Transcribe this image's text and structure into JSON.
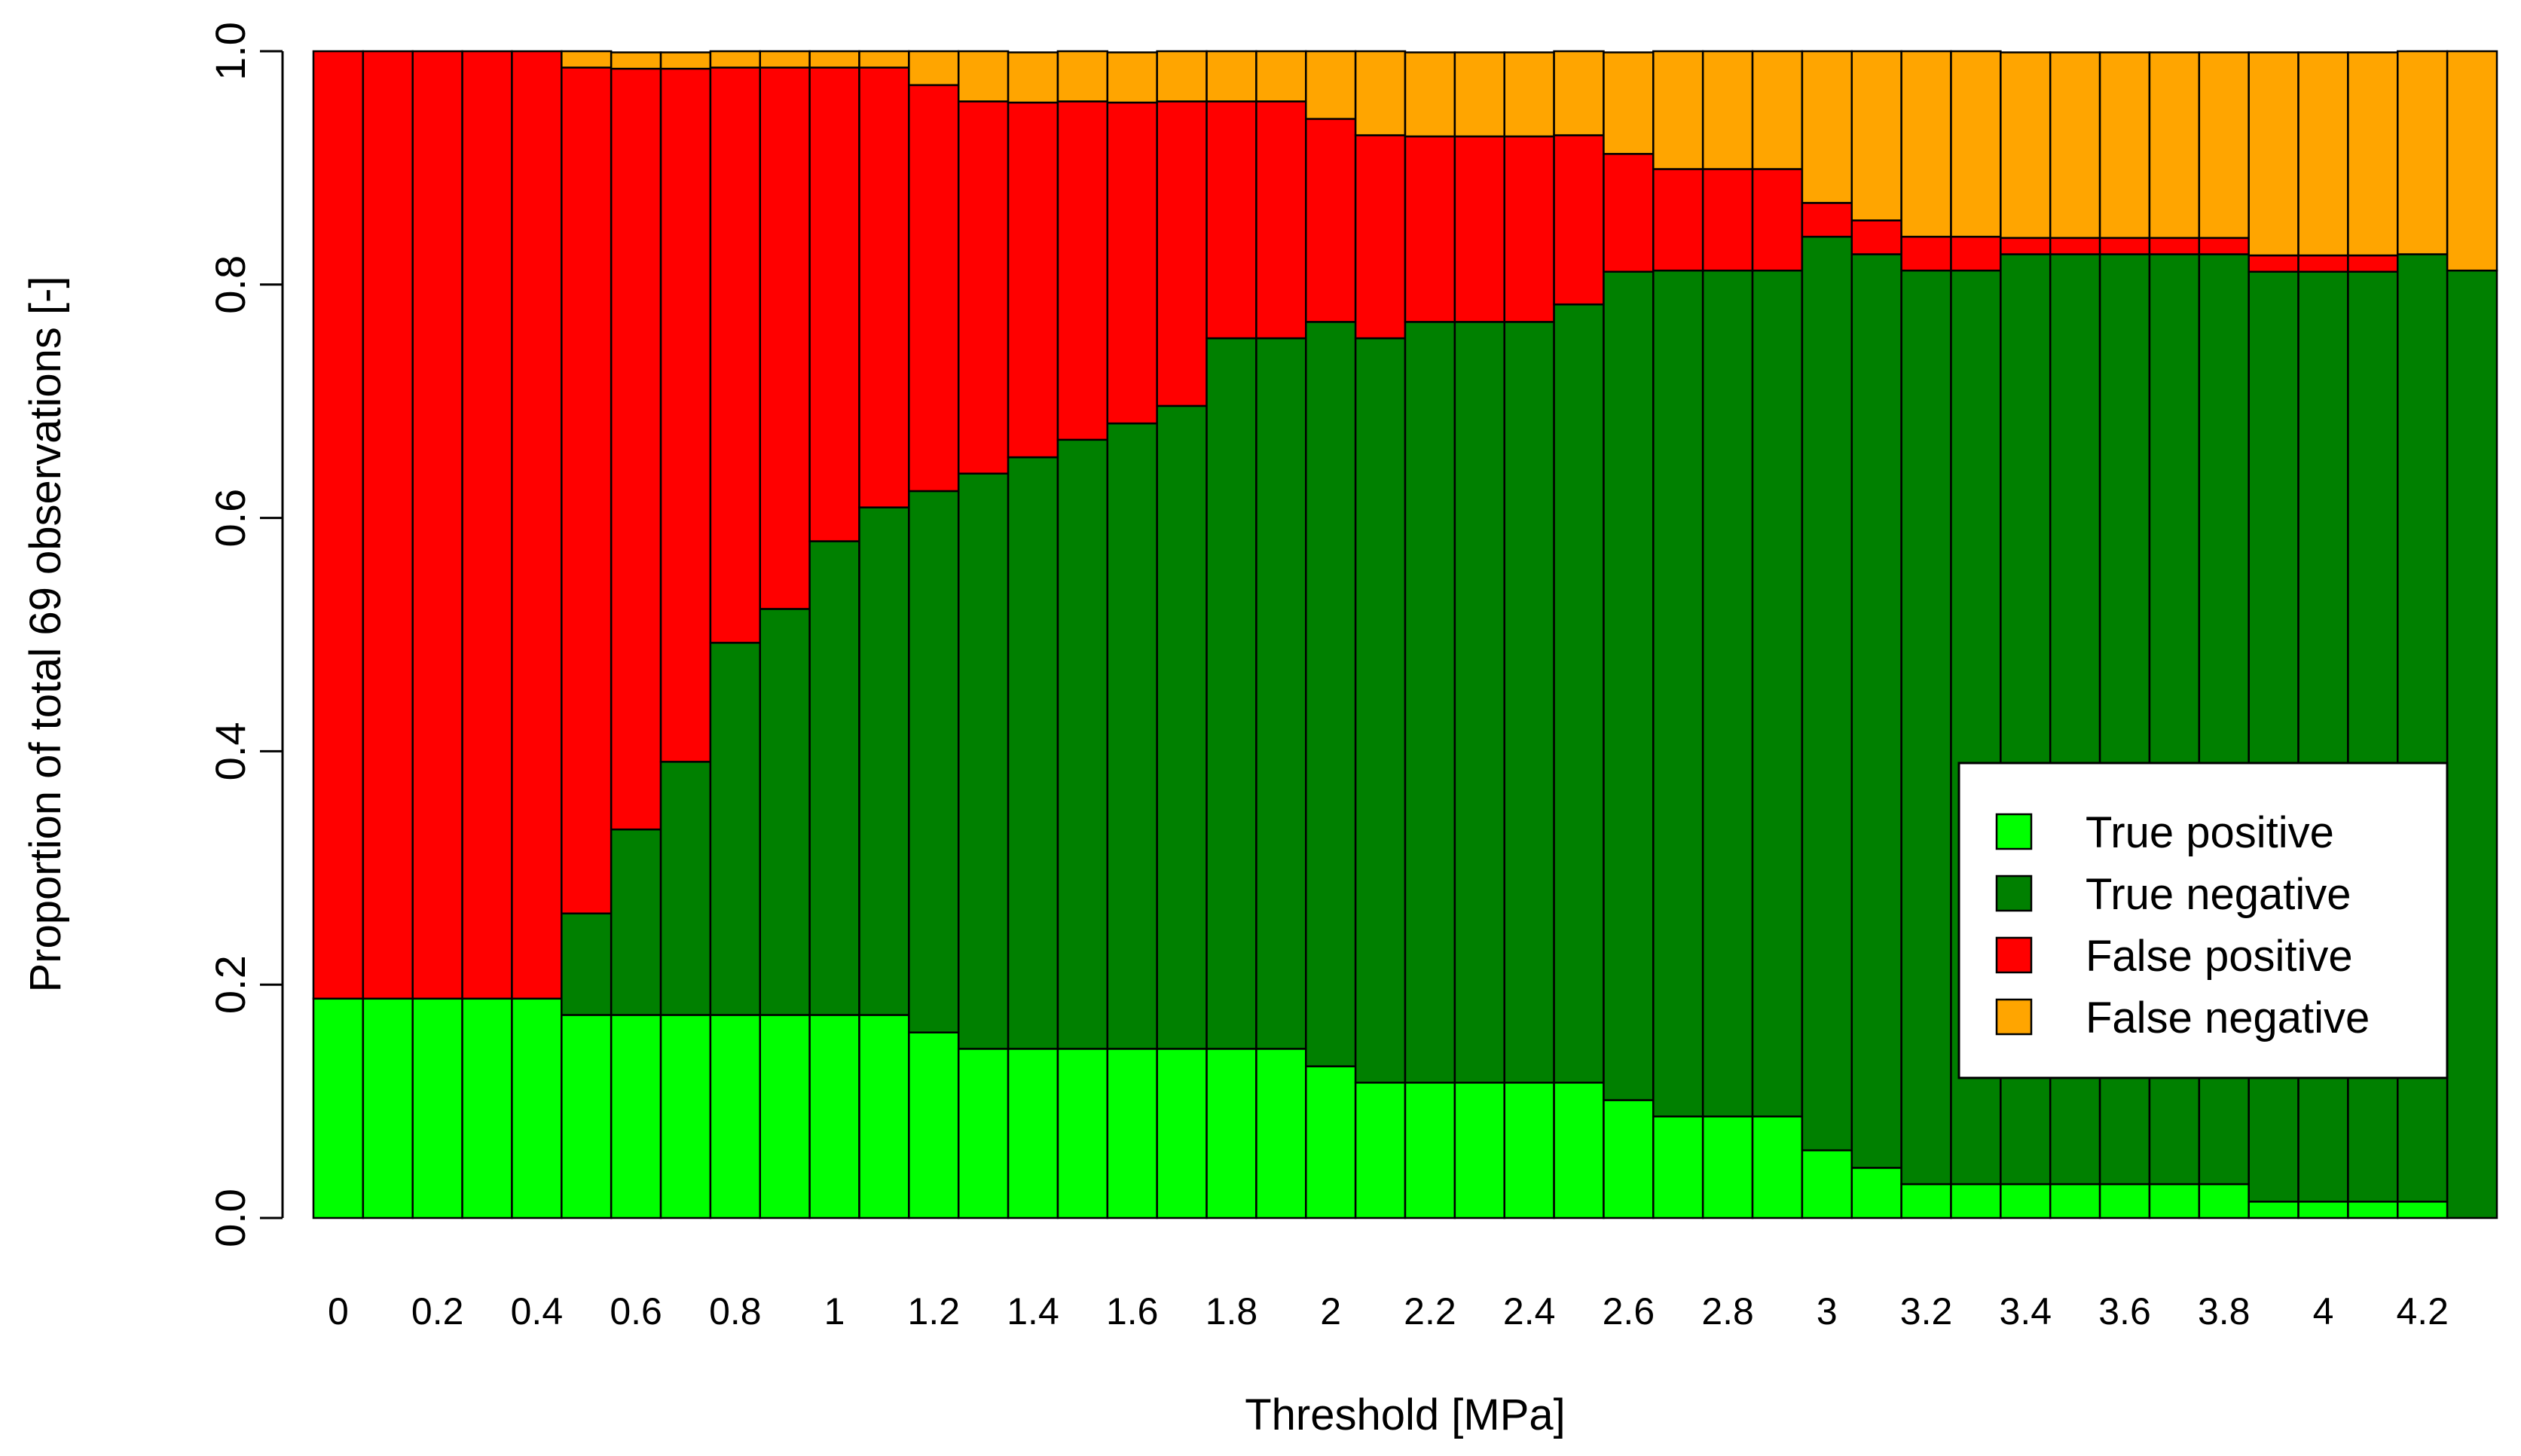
{
  "chart_data": {
    "type": "bar",
    "stacked": true,
    "xlabel": "Threshold [MPa]",
    "ylabel": "Proportion of total 69 observations [-]",
    "ylim": [
      0,
      1
    ],
    "yticks": [
      "0.0",
      "0.2",
      "0.4",
      "0.6",
      "0.8",
      "1.0"
    ],
    "yticks_values": [
      0,
      0.2,
      0.4,
      0.6,
      0.8,
      1.0
    ],
    "categories": [
      "0",
      "",
      "0.2",
      "",
      "0.4",
      "",
      "0.6",
      "",
      "0.8",
      "",
      "1",
      "",
      "1.2",
      "",
      "1.4",
      "",
      "1.6",
      "",
      "1.8",
      "",
      "2",
      "",
      "2.2",
      "",
      "2.4",
      "",
      "2.6",
      "",
      "2.8",
      "",
      "3",
      "",
      "3.2",
      "",
      "3.4",
      "",
      "3.6",
      "",
      "3.8",
      "",
      "4",
      "",
      "4.2",
      ""
    ],
    "legend_position": "right",
    "series": [
      {
        "name": "True positive",
        "color": "#00ff00",
        "values": [
          0.188,
          0.188,
          0.188,
          0.188,
          0.188,
          0.174,
          0.174,
          0.174,
          0.174,
          0.174,
          0.174,
          0.174,
          0.159,
          0.145,
          0.145,
          0.145,
          0.145,
          0.145,
          0.145,
          0.145,
          0.13,
          0.116,
          0.116,
          0.116,
          0.116,
          0.116,
          0.101,
          0.087,
          0.087,
          0.087,
          0.058,
          0.043,
          0.029,
          0.029,
          0.029,
          0.029,
          0.029,
          0.029,
          0.029,
          0.014,
          0.014,
          0.014,
          0.014,
          0.0
        ]
      },
      {
        "name": "True negative",
        "color": "#008000",
        "values": [
          0.0,
          0.0,
          0.0,
          0.0,
          0.0,
          0.087,
          0.159,
          0.217,
          0.319,
          0.348,
          0.406,
          0.435,
          0.464,
          0.493,
          0.507,
          0.522,
          0.536,
          0.551,
          0.609,
          0.609,
          0.638,
          0.638,
          0.652,
          0.652,
          0.652,
          0.667,
          0.71,
          0.725,
          0.725,
          0.725,
          0.783,
          0.783,
          0.783,
          0.783,
          0.797,
          0.797,
          0.797,
          0.797,
          0.797,
          0.797,
          0.797,
          0.797,
          0.812,
          0.812
        ]
      },
      {
        "name": "False positive",
        "color": "#ff0000",
        "values": [
          0.812,
          0.812,
          0.812,
          0.812,
          0.812,
          0.725,
          0.652,
          0.594,
          0.493,
          0.464,
          0.406,
          0.377,
          0.348,
          0.319,
          0.304,
          0.29,
          0.275,
          0.261,
          0.203,
          0.203,
          0.174,
          0.174,
          0.159,
          0.159,
          0.159,
          0.145,
          0.101,
          0.087,
          0.087,
          0.087,
          0.029,
          0.029,
          0.029,
          0.029,
          0.014,
          0.014,
          0.014,
          0.014,
          0.014,
          0.014,
          0.014,
          0.014,
          0.0,
          0.0
        ]
      },
      {
        "name": "False negative",
        "color": "#ffa500",
        "values": [
          0.0,
          0.0,
          0.0,
          0.0,
          0.0,
          0.014,
          0.014,
          0.014,
          0.014,
          0.014,
          0.014,
          0.014,
          0.029,
          0.043,
          0.043,
          0.043,
          0.043,
          0.043,
          0.043,
          0.043,
          0.058,
          0.072,
          0.072,
          0.072,
          0.072,
          0.072,
          0.087,
          0.101,
          0.101,
          0.101,
          0.13,
          0.145,
          0.159,
          0.159,
          0.159,
          0.159,
          0.159,
          0.159,
          0.159,
          0.174,
          0.174,
          0.174,
          0.174,
          0.188
        ]
      }
    ]
  }
}
